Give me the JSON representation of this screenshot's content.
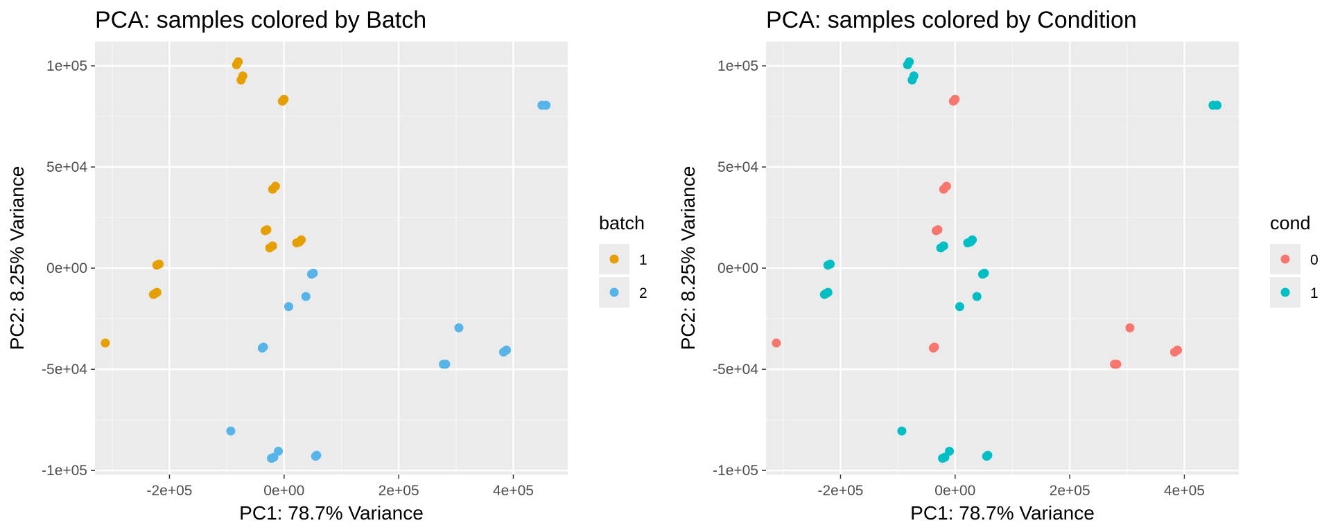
{
  "chart_data": [
    {
      "type": "scatter",
      "title": "PCA: samples colored by Batch",
      "xlabel": "PC1: 78.7% Variance",
      "ylabel": "PC2: 8.25% Variance",
      "xlim": [
        -330000,
        495000
      ],
      "ylim": [
        -102000,
        112000
      ],
      "x_ticks": [
        -200000,
        0,
        200000,
        400000
      ],
      "x_tick_labels": [
        "-2e+05",
        "0e+00",
        "2e+05",
        "4e+05"
      ],
      "y_ticks": [
        -100000,
        -50000,
        0,
        50000,
        100000
      ],
      "y_tick_labels": [
        "-1e+05",
        "-5e+04",
        "0e+00",
        "5e+04",
        "1e+05"
      ],
      "grid": true,
      "legend": {
        "title": "batch",
        "position": "right",
        "entries": [
          "1",
          "2"
        ]
      },
      "series": [
        {
          "name": "1",
          "color": "#E69F00",
          "points": [
            [
              -83000,
              100500
            ],
            [
              -80000,
              102000
            ],
            [
              -75000,
              93000
            ],
            [
              -72000,
              95000
            ],
            [
              -3000,
              82500
            ],
            [
              0,
              83500
            ],
            [
              -20000,
              39000
            ],
            [
              -15000,
              40500
            ],
            [
              -33000,
              18500
            ],
            [
              -30000,
              19000
            ],
            [
              -25000,
              10000
            ],
            [
              -20000,
              11000
            ],
            [
              22000,
              12500
            ],
            [
              27000,
              13000
            ],
            [
              30000,
              14000
            ],
            [
              -222000,
              1500
            ],
            [
              -218000,
              2000
            ],
            [
              -228000,
              -13000
            ],
            [
              -225000,
              -12500
            ],
            [
              -222000,
              -12000
            ],
            [
              -312000,
              -37000
            ]
          ]
        },
        {
          "name": "2",
          "color": "#56B4E9",
          "points": [
            [
              450000,
              80500
            ],
            [
              457000,
              80500
            ],
            [
              48000,
              -3000
            ],
            [
              51000,
              -2500
            ],
            [
              38000,
              -14000
            ],
            [
              8000,
              -19000
            ],
            [
              305000,
              -29500
            ],
            [
              -38000,
              -39500
            ],
            [
              -36000,
              -39000
            ],
            [
              278000,
              -47500
            ],
            [
              282000,
              -47500
            ],
            [
              383000,
              -41500
            ],
            [
              388000,
              -40500
            ],
            [
              -93000,
              -80500
            ],
            [
              -10000,
              -90500
            ],
            [
              -22000,
              -94000
            ],
            [
              -18000,
              -93500
            ],
            [
              55000,
              -93000
            ],
            [
              57000,
              -92500
            ]
          ]
        }
      ]
    },
    {
      "type": "scatter",
      "title": "PCA: samples colored by Condition",
      "xlabel": "PC1: 78.7% Variance",
      "ylabel": "PC2: 8.25% Variance",
      "xlim": [
        -330000,
        495000
      ],
      "ylim": [
        -102000,
        112000
      ],
      "x_ticks": [
        -200000,
        0,
        200000,
        400000
      ],
      "x_tick_labels": [
        "-2e+05",
        "0e+00",
        "2e+05",
        "4e+05"
      ],
      "y_ticks": [
        -100000,
        -50000,
        0,
        50000,
        100000
      ],
      "y_tick_labels": [
        "-1e+05",
        "-5e+04",
        "0e+00",
        "5e+04",
        "1e+05"
      ],
      "grid": true,
      "legend": {
        "title": "cond",
        "position": "right",
        "entries": [
          "0",
          "1"
        ]
      },
      "series": [
        {
          "name": "0",
          "color": "#F8766D",
          "points": [
            [
              -3000,
              82500
            ],
            [
              0,
              83500
            ],
            [
              -20000,
              39000
            ],
            [
              -15000,
              40500
            ],
            [
              -33000,
              18500
            ],
            [
              -30000,
              19000
            ],
            [
              -312000,
              -37000
            ],
            [
              -38000,
              -39500
            ],
            [
              -36000,
              -39000
            ],
            [
              305000,
              -29500
            ],
            [
              278000,
              -47500
            ],
            [
              282000,
              -47500
            ],
            [
              383000,
              -41500
            ],
            [
              388000,
              -40500
            ]
          ]
        },
        {
          "name": "1",
          "color": "#00BFC4",
          "points": [
            [
              -83000,
              100500
            ],
            [
              -80000,
              102000
            ],
            [
              -75000,
              93000
            ],
            [
              -72000,
              95000
            ],
            [
              450000,
              80500
            ],
            [
              457000,
              80500
            ],
            [
              -25000,
              10000
            ],
            [
              -20000,
              11000
            ],
            [
              22000,
              12500
            ],
            [
              27000,
              13000
            ],
            [
              30000,
              14000
            ],
            [
              -222000,
              1500
            ],
            [
              -218000,
              2000
            ],
            [
              -228000,
              -13000
            ],
            [
              -225000,
              -12500
            ],
            [
              -222000,
              -12000
            ],
            [
              48000,
              -3000
            ],
            [
              51000,
              -2500
            ],
            [
              38000,
              -14000
            ],
            [
              8000,
              -19000
            ],
            [
              -93000,
              -80500
            ],
            [
              -10000,
              -90500
            ],
            [
              -22000,
              -94000
            ],
            [
              -18000,
              -93500
            ],
            [
              55000,
              -93000
            ],
            [
              57000,
              -92500
            ]
          ]
        }
      ]
    }
  ]
}
